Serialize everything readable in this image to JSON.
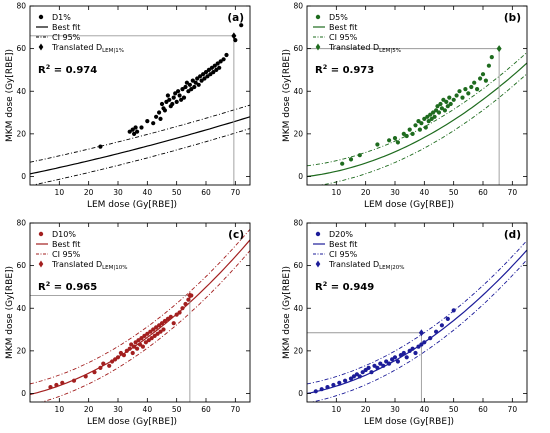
{
  "chart_data": [
    {
      "type": "scatter",
      "panel_label": "(a)",
      "xlabel": "LEM dose (Gy[RBE])",
      "ylabel": "MKM dose (Gy[RBE])",
      "xlim": [
        0,
        75
      ],
      "ylim": [
        -4,
        80
      ],
      "xticks": [
        "10",
        "20",
        "30",
        "40",
        "50",
        "60",
        "70"
      ],
      "yticks": [
        "0",
        "20",
        "40",
        "60",
        "80"
      ],
      "color": "#000000",
      "r2_label": "R",
      "r2_sup": "2",
      "r2_value": " = 0.974",
      "legend": {
        "scatter": "D1%",
        "fit": "Best fit",
        "ci": "CI 95%",
        "translated_prefix": "Translated D",
        "translated_sub": "LEM|1%"
      },
      "translated": {
        "x": 69.5,
        "y": 66
      },
      "fit": {
        "a": 0.0009,
        "b": 0.29,
        "c": 1.2
      },
      "ci_offset": 5.5,
      "series": [
        {
          "x": [
            24,
            34,
            35,
            35.5,
            36,
            36.5,
            38,
            40,
            42,
            43,
            44,
            44.5,
            45,
            45.5,
            46,
            46.5,
            47,
            47.5,
            48,
            48.5,
            49,
            49.5,
            50,
            50.5,
            51,
            51.5,
            52,
            52.5,
            53,
            53.5,
            54,
            54.5,
            55,
            55.5,
            56,
            56.5,
            57,
            57.5,
            58,
            58.5,
            59,
            59.5,
            60,
            60.5,
            61,
            61.5,
            62,
            62.5,
            63,
            63.5,
            64,
            64.5,
            65,
            66,
            67,
            70,
            72
          ],
          "y": [
            14,
            21,
            22,
            20,
            23,
            21,
            23,
            26,
            25,
            28,
            30,
            27,
            34,
            32,
            31,
            35,
            38,
            36,
            33,
            34,
            37,
            39,
            35,
            40,
            38,
            36,
            41,
            37,
            42,
            44,
            40,
            43,
            41,
            45,
            42,
            44,
            46,
            43,
            47,
            45,
            48,
            46,
            49,
            47,
            50,
            48,
            51,
            49,
            52,
            50,
            53,
            51,
            54,
            55,
            57,
            64,
            71
          ]
        }
      ]
    },
    {
      "type": "scatter",
      "panel_label": "(b)",
      "xlabel": "LEM dose (Gy[RBE])",
      "ylabel": "MKM dose (Gy[RBE])",
      "xlim": [
        0,
        75
      ],
      "ylim": [
        -4,
        80
      ],
      "xticks": [
        "10",
        "20",
        "30",
        "40",
        "50",
        "60",
        "70"
      ],
      "yticks": [
        "0",
        "20",
        "40",
        "60",
        "80"
      ],
      "color": "#1e6b1e",
      "r2_label": "R",
      "r2_sup": "2",
      "r2_value": " = 0.973",
      "legend": {
        "scatter": "D5%",
        "fit": "Best fit",
        "ci": "CI 95%",
        "translated_prefix": "Translated D",
        "translated_sub": "LEM|5%"
      },
      "translated": {
        "x": 65.5,
        "y": 60
      },
      "fit": {
        "a": 0.0072,
        "b": 0.17,
        "c": 0
      },
      "ci_offset": 5.0,
      "series": [
        {
          "x": [
            12,
            15,
            18,
            24,
            28,
            30,
            31,
            33,
            34,
            35,
            36,
            37,
            38,
            38.5,
            39,
            40,
            40.5,
            41,
            41.5,
            42,
            42.5,
            43,
            43.5,
            44,
            44.5,
            45,
            45.5,
            46,
            46.5,
            47,
            47.5,
            48,
            48.5,
            49,
            50,
            51,
            52,
            53,
            54,
            55,
            56,
            57,
            58,
            59,
            60,
            61,
            62,
            63
          ],
          "y": [
            6,
            8,
            10,
            15,
            17,
            18,
            16,
            20,
            19,
            22,
            20,
            24,
            26,
            22,
            25,
            27,
            23,
            28,
            26,
            29,
            27,
            30,
            28,
            31,
            33,
            30,
            34,
            32,
            36,
            31,
            35,
            33,
            37,
            34,
            36,
            38,
            40,
            37,
            41,
            39,
            42,
            44,
            41,
            46,
            48,
            45,
            52,
            56
          ]
        }
      ]
    },
    {
      "type": "scatter",
      "panel_label": "(c)",
      "xlabel": "LEM dose (Gy[RBE])",
      "ylabel": "MKM dose (Gy[RBE])",
      "xlim": [
        0,
        75
      ],
      "ylim": [
        -4,
        80
      ],
      "xticks": [
        "10",
        "20",
        "30",
        "40",
        "50",
        "60",
        "70"
      ],
      "yticks": [
        "0",
        "20",
        "40",
        "60",
        "80"
      ],
      "color": "#a31f1f",
      "r2_label": "R",
      "r2_sup": "2",
      "r2_value": " = 0.965",
      "legend": {
        "scatter": "D10%",
        "fit": "Best fit",
        "ci": "CI 95%",
        "translated_prefix": "Translated D",
        "translated_sub": "LEM|10%"
      },
      "translated": {
        "x": 54.5,
        "y": 46
      },
      "fit": {
        "a": 0.0085,
        "b": 0.33,
        "c": -0.5
      },
      "ci_offset": 5.0,
      "series": [
        {
          "x": [
            7,
            9,
            11,
            15,
            19,
            22,
            24,
            25,
            27,
            28,
            29,
            30,
            31,
            32,
            33,
            34,
            34.5,
            35,
            35.5,
            36,
            36.5,
            37,
            37.5,
            38,
            38.5,
            39,
            39.5,
            40,
            40.5,
            41,
            41.5,
            42,
            42.5,
            43,
            43.5,
            44,
            44.5,
            45,
            45.5,
            46,
            47,
            48,
            49,
            50,
            51,
            52,
            53,
            54,
            55
          ],
          "y": [
            3,
            4,
            5,
            6,
            8,
            10,
            12,
            14,
            13,
            15,
            16,
            17,
            19,
            18,
            20,
            21,
            23,
            19,
            22,
            24,
            21,
            25,
            23,
            26,
            22,
            27,
            24,
            28,
            25,
            29,
            26,
            30,
            27,
            31,
            28,
            32,
            29,
            33,
            30,
            34,
            35,
            36,
            33,
            37,
            38,
            40,
            42,
            44,
            46
          ]
        }
      ]
    },
    {
      "type": "scatter",
      "panel_label": "(d)",
      "xlabel": "LEM dose (Gy[RBE])",
      "ylabel": "MKM dose (Gy[RBE])",
      "xlim": [
        0,
        75
      ],
      "ylim": [
        -4,
        80
      ],
      "xticks": [
        "10",
        "20",
        "30",
        "40",
        "50",
        "60",
        "70"
      ],
      "yticks": [
        "0",
        "20",
        "40",
        "60",
        "80"
      ],
      "color": "#1c1c99",
      "r2_label": "R",
      "r2_sup": "2",
      "r2_value": " = 0.949",
      "legend": {
        "scatter": "D20%",
        "fit": "Best fit",
        "ci": "CI 95%",
        "translated_prefix": "Translated D",
        "translated_sub": "LEM|20%"
      },
      "translated": {
        "x": 39,
        "y": 28.5
      },
      "fit": {
        "a": 0.0085,
        "b": 0.26,
        "c": 0
      },
      "ci_offset": 4.5,
      "series": [
        {
          "x": [
            3,
            5,
            7,
            9,
            11,
            13,
            15,
            16,
            17,
            18,
            19,
            20,
            21,
            22,
            23,
            24,
            25,
            26,
            27,
            28,
            29,
            30,
            31,
            32,
            33,
            34,
            35,
            36,
            37,
            38,
            39,
            40,
            42,
            44,
            46,
            48,
            50
          ],
          "y": [
            1,
            2,
            3,
            4,
            5,
            6,
            7,
            8,
            9,
            8,
            10,
            11,
            12,
            10,
            13,
            12,
            14,
            13,
            15,
            14,
            16,
            17,
            15,
            18,
            19,
            17,
            20,
            21,
            19,
            22,
            23,
            24,
            26,
            29,
            32,
            35,
            39
          ]
        }
      ]
    }
  ]
}
